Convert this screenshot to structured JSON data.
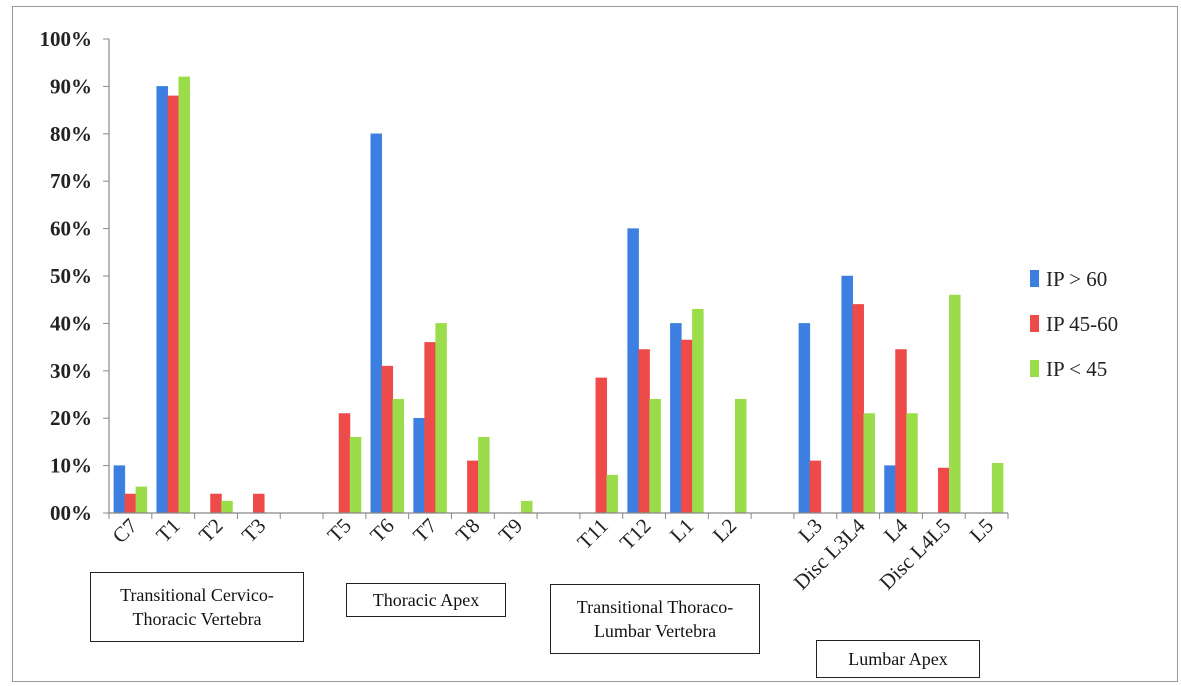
{
  "chart_data": {
    "type": "bar",
    "categories": [
      "C7",
      "T1",
      "T2",
      "T3",
      "",
      "T5",
      "T6",
      "T7",
      "T8",
      "T9",
      "",
      "T11",
      "T12",
      "L1",
      "L2",
      "",
      "L3",
      "Disc L3L4",
      "L4",
      "Disc L4L5",
      "L5"
    ],
    "series": [
      {
        "name": "IP > 60",
        "color": "#3d7fe0",
        "values": [
          10,
          90,
          0,
          0,
          null,
          0,
          80,
          20,
          0,
          0,
          null,
          0,
          60,
          40,
          0,
          null,
          40,
          50,
          10,
          0,
          0
        ]
      },
      {
        "name": "IP 45-60",
        "color": "#ee4a4a",
        "values": [
          4,
          88,
          4,
          4,
          null,
          21,
          31,
          36,
          11,
          0,
          null,
          28.5,
          34.5,
          36.5,
          0,
          null,
          11,
          44,
          34.5,
          9.5,
          0
        ]
      },
      {
        "name": "IP < 45",
        "color": "#9bdc4a",
        "values": [
          5.5,
          92,
          2.5,
          0,
          null,
          16,
          24,
          40,
          16,
          2.5,
          null,
          8,
          24,
          43,
          24,
          null,
          0,
          21,
          21,
          46,
          10.5
        ]
      }
    ],
    "y_ticks": [
      "00%",
      "10%",
      "20%",
      "30%",
      "40%",
      "50%",
      "60%",
      "70%",
      "80%",
      "90%",
      "100%"
    ],
    "ylim": [
      0,
      100
    ],
    "legend_position": "right",
    "grid": false,
    "annotations": [
      {
        "id": "cervico",
        "text": "Transitional Cervico-Thoracic Vertebra"
      },
      {
        "id": "thoracic",
        "text": "Thoracic Apex"
      },
      {
        "id": "thoracolumbar",
        "text": "Transitional Thoraco-Lumbar Vertebra"
      },
      {
        "id": "lumbar",
        "text": "Lumbar Apex"
      }
    ]
  }
}
